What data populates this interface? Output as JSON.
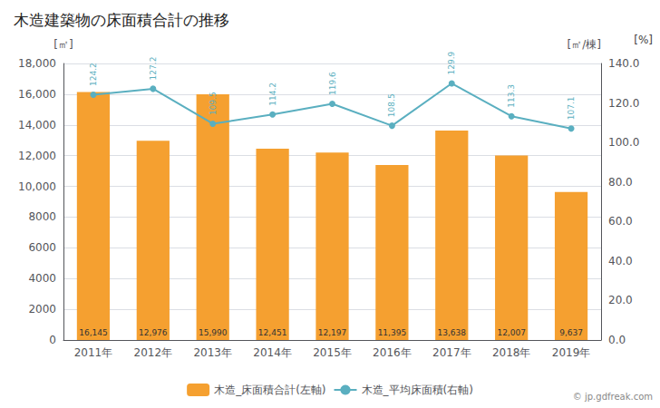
{
  "chart_data": {
    "type": "bar",
    "title": "木造建築物の床面積合計の推移",
    "categories": [
      "2011年",
      "2012年",
      "2013年",
      "2014年",
      "2015年",
      "2016年",
      "2017年",
      "2018年",
      "2019年"
    ],
    "series": [
      {
        "name": "木造_床面積合計(左軸)",
        "type": "bar",
        "color": "#F5A030",
        "values": [
          16145,
          12976,
          15990,
          12451,
          12197,
          11395,
          13638,
          12007,
          9637
        ],
        "value_labels": [
          "16,145",
          "12,976",
          "15,990",
          "12,451",
          "12,197",
          "11,395",
          "13,638",
          "12,007",
          "9,637"
        ]
      },
      {
        "name": "木造_平均床面積(右軸)",
        "type": "line",
        "marker": "circle",
        "color": "#5AAFC0",
        "axis": "y2",
        "values": [
          124.2,
          127.2,
          109.5,
          114.2,
          119.6,
          108.5,
          129.9,
          113.3,
          107.1
        ]
      }
    ],
    "ylabel": "[㎡]",
    "y2label": "[㎡/棟]",
    "annotations": [
      "[%]",
      "© jp.gdfreak.com"
    ],
    "ylim": [
      0,
      18000
    ],
    "yticks": [
      0,
      2000,
      4000,
      6000,
      8000,
      {
        "value": 10000,
        "label": "10,000"
      },
      {
        "value": 12000,
        "label": "12,000"
      },
      {
        "value": 14000,
        "label": "14,000"
      },
      {
        "value": 16000,
        "label": "16,000"
      },
      {
        "value": 18000,
        "label": "18,000"
      }
    ],
    "y2lim": [
      0,
      140.0
    ],
    "y2ticks": [
      {
        "value": 0,
        "label": "0.0"
      },
      {
        "value": 20,
        "label": "20.0"
      },
      {
        "value": 40,
        "label": "40.0"
      },
      {
        "value": 60,
        "label": "60.0"
      },
      {
        "value": 80,
        "label": "80.0"
      },
      {
        "value": 100,
        "label": "100.0"
      },
      {
        "value": 120,
        "label": "120.0"
      },
      {
        "value": 140,
        "label": "140.0"
      }
    ],
    "grid": true,
    "legend": "bottom",
    "data_labels": true
  }
}
